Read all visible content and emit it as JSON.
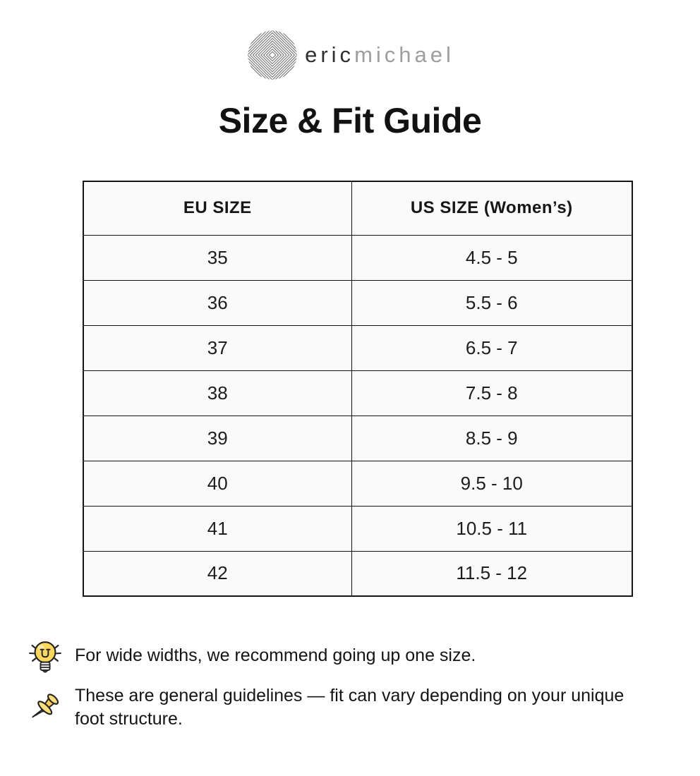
{
  "logo": {
    "brand_part1": "eric",
    "brand_part2": "michael"
  },
  "title": "Size & Fit Guide",
  "table": {
    "headers": [
      "EU SIZE",
      "US SIZE (Women’s)"
    ],
    "rows": [
      {
        "eu": "35",
        "us": "4.5 - 5"
      },
      {
        "eu": "36",
        "us": "5.5 - 6"
      },
      {
        "eu": "37",
        "us": "6.5 - 7"
      },
      {
        "eu": "38",
        "us": "7.5 - 8"
      },
      {
        "eu": "39",
        "us": "8.5 - 9"
      },
      {
        "eu": "40",
        "us": "9.5 - 10"
      },
      {
        "eu": "41",
        "us": "10.5 - 11"
      },
      {
        "eu": "42",
        "us": "11.5 - 12"
      }
    ]
  },
  "notes": [
    {
      "icon": "lightbulb-icon",
      "text": "For wide widths, we recommend going up one size."
    },
    {
      "icon": "pushpin-icon",
      "text": "These are general guidelines — fit can vary depending on your unique foot structure."
    }
  ],
  "colors": {
    "cell_background": "#fafafa",
    "table_border": "#141414",
    "brand_dark": "#2f2f2f",
    "brand_light": "#9e9e9e",
    "title_text": "#121212",
    "bulb_yellow": "#fbd65d",
    "pin_gold": "#f6cd57"
  }
}
